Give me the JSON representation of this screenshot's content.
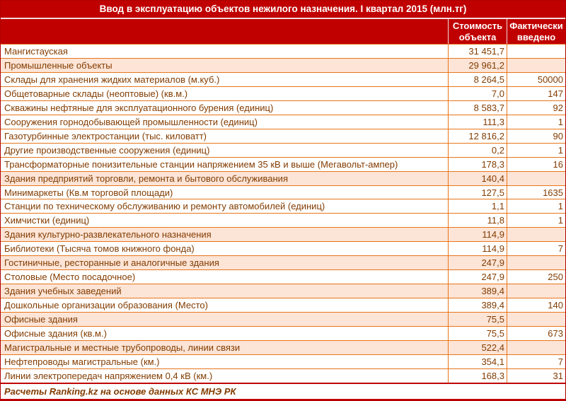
{
  "title": "Ввод в эксплуатацию объектов нежилого назначения. I квартал 2015 (млн.тг)",
  "columns": {
    "object": "",
    "cost": "Стоимость объекта",
    "fact": "Фактически введено"
  },
  "footer": "Расчеты Ranking.kz на основе данных КС МНЭ РК",
  "colors": {
    "header_bg": "#C00000",
    "header_text": "#FFFFFF",
    "row_text": "#833C00",
    "stripe_bg": "#FCE4D6",
    "row_border": "#E8751A",
    "outer_border": "#B00000"
  },
  "chart_data": {
    "type": "table",
    "title": "Ввод в эксплуатацию объектов нежилого назначения. I квартал 2015 (млн.тг)",
    "columns": [
      "",
      "Стоимость объекта",
      "Фактически введено"
    ],
    "source": "Расчеты Ranking.kz на основе данных КС МНЭ РК",
    "rows": [
      {
        "label": "Мангистауская",
        "cost": "31 451,7",
        "fact": "",
        "highlight": false
      },
      {
        "label": "Промышленные объекты",
        "cost": "29 961,2",
        "fact": "",
        "highlight": true
      },
      {
        "label": "Склады для хранения жидких материалов (м.куб.)",
        "cost": "8 264,5",
        "fact": "50000",
        "highlight": false
      },
      {
        "label": "Общетоварные склады (неоптовые) (кв.м.)",
        "cost": "7,0",
        "fact": "147",
        "highlight": false
      },
      {
        "label": "Скважины нефтяные для эксплуатационного бурения (единиц)",
        "cost": "8 583,7",
        "fact": "92",
        "highlight": false
      },
      {
        "label": "Сооружения горнодобывающей промышленности (единиц)",
        "cost": "111,3",
        "fact": "1",
        "highlight": false
      },
      {
        "label": "Газотурбинные электростанции (тыс. киловатт)",
        "cost": "12 816,2",
        "fact": "90",
        "highlight": false
      },
      {
        "label": "Другие производственные сооружения (единиц)",
        "cost": "0,2",
        "fact": "1",
        "highlight": false
      },
      {
        "label": "Трансформаторные понизительные станции напряжением 35 кВ и выше (Мегавольт-ампер)",
        "cost": "178,3",
        "fact": "16",
        "highlight": false
      },
      {
        "label": "Здания предприятий торговли, ремонта и бытового обслуживания",
        "cost": "140,4",
        "fact": "",
        "highlight": true
      },
      {
        "label": "Минимаркеты (Кв.м торговой площади)",
        "cost": "127,5",
        "fact": "1635",
        "highlight": false
      },
      {
        "label": "Станции по техническому обслуживанию и ремонту автомобилей (единиц)",
        "cost": "1,1",
        "fact": "1",
        "highlight": false
      },
      {
        "label": "Химчистки (единиц)",
        "cost": "11,8",
        "fact": "1",
        "highlight": false
      },
      {
        "label": "Здания культурно-развлекательного назначения",
        "cost": "114,9",
        "fact": "",
        "highlight": true
      },
      {
        "label": "Библиотеки (Тысяча томов книжного фонда)",
        "cost": "114,9",
        "fact": "7",
        "highlight": false
      },
      {
        "label": "Гостиничные, ресторанные и аналогичные здания",
        "cost": "247,9",
        "fact": "",
        "highlight": true
      },
      {
        "label": "Столовые (Место посадочное)",
        "cost": "247,9",
        "fact": "250",
        "highlight": false
      },
      {
        "label": "Здания учебных заведений",
        "cost": "389,4",
        "fact": "",
        "highlight": true
      },
      {
        "label": "Дошкольные организации образования (Место)",
        "cost": "389,4",
        "fact": "140",
        "highlight": false
      },
      {
        "label": "Офисные здания",
        "cost": "75,5",
        "fact": "",
        "highlight": true
      },
      {
        "label": "Офисные здания (кв.м.)",
        "cost": "75,5",
        "fact": "673",
        "highlight": false
      },
      {
        "label": "Магистральные и местные трубопроводы, линии связи",
        "cost": "522,4",
        "fact": "",
        "highlight": true
      },
      {
        "label": "Нефтепроводы магистральные (км.)",
        "cost": "354,1",
        "fact": "7",
        "highlight": false
      },
      {
        "label": "Линии электропередач напряжением 0,4 кВ (км.)",
        "cost": "168,3",
        "fact": "31",
        "highlight": false
      }
    ]
  }
}
